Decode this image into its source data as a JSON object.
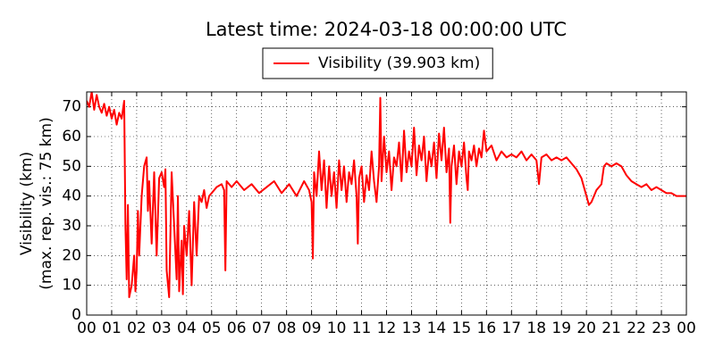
{
  "chart_data": {
    "type": "line",
    "title": "Latest time: 2024-03-18 00:00:00 UTC",
    "ylabel": [
      "Visibility (km)",
      "(max. rep. vis.: 75 km)"
    ],
    "xlim": [
      0,
      24
    ],
    "ylim": [
      0,
      75
    ],
    "yticks": [
      0,
      10,
      20,
      30,
      40,
      50,
      60,
      70
    ],
    "xticks": [
      {
        "value": 0,
        "label": "00"
      },
      {
        "value": 1,
        "label": "01"
      },
      {
        "value": 2,
        "label": "02"
      },
      {
        "value": 3,
        "label": "03"
      },
      {
        "value": 4,
        "label": "04"
      },
      {
        "value": 5,
        "label": "05"
      },
      {
        "value": 6,
        "label": "06"
      },
      {
        "value": 7,
        "label": "07"
      },
      {
        "value": 8,
        "label": "08"
      },
      {
        "value": 9,
        "label": "09"
      },
      {
        "value": 10,
        "label": "10"
      },
      {
        "value": 11,
        "label": "11"
      },
      {
        "value": 12,
        "label": "12"
      },
      {
        "value": 13,
        "label": "13"
      },
      {
        "value": 14,
        "label": "14"
      },
      {
        "value": 15,
        "label": "15"
      },
      {
        "value": 16,
        "label": "16"
      },
      {
        "value": 17,
        "label": "17"
      },
      {
        "value": 18,
        "label": "18"
      },
      {
        "value": 19,
        "label": "19"
      },
      {
        "value": 20,
        "label": "20"
      },
      {
        "value": 21,
        "label": "21"
      },
      {
        "value": 22,
        "label": "22"
      },
      {
        "value": 23,
        "label": "23"
      },
      {
        "value": 24,
        "label": "00"
      }
    ],
    "grid": true,
    "legend": "top",
    "x": [
      0,
      0.1,
      0.2,
      0.3,
      0.4,
      0.5,
      0.6,
      0.7,
      0.8,
      0.9,
      1.0,
      1.1,
      1.2,
      1.3,
      1.4,
      1.5,
      1.55,
      1.6,
      1.65,
      1.7,
      1.8,
      1.9,
      1.95,
      2.0,
      2.05,
      2.1,
      2.2,
      2.3,
      2.4,
      2.45,
      2.5,
      2.6,
      2.7,
      2.8,
      2.9,
      3.0,
      3.1,
      3.15,
      3.2,
      3.3,
      3.4,
      3.5,
      3.6,
      3.65,
      3.7,
      3.8,
      3.85,
      3.9,
      4.0,
      4.1,
      4.2,
      4.3,
      4.4,
      4.5,
      4.6,
      4.7,
      4.8,
      4.9,
      5.0,
      5.2,
      5.4,
      5.5,
      5.55,
      5.6,
      5.8,
      6.0,
      6.3,
      6.6,
      6.9,
      7.2,
      7.5,
      7.8,
      8.1,
      8.4,
      8.7,
      8.9,
      9.0,
      9.05,
      9.1,
      9.2,
      9.3,
      9.4,
      9.5,
      9.6,
      9.7,
      9.8,
      9.9,
      10.0,
      10.1,
      10.2,
      10.3,
      10.4,
      10.5,
      10.6,
      10.7,
      10.8,
      10.85,
      10.9,
      11.0,
      11.1,
      11.2,
      11.3,
      11.4,
      11.5,
      11.6,
      11.7,
      11.75,
      11.8,
      11.9,
      12.0,
      12.1,
      12.2,
      12.3,
      12.4,
      12.5,
      12.6,
      12.7,
      12.8,
      12.9,
      13.0,
      13.1,
      13.2,
      13.3,
      13.4,
      13.5,
      13.6,
      13.7,
      13.8,
      13.9,
      14.0,
      14.1,
      14.2,
      14.3,
      14.4,
      14.5,
      14.55,
      14.6,
      14.7,
      14.8,
      14.9,
      15.0,
      15.1,
      15.2,
      15.25,
      15.3,
      15.4,
      15.5,
      15.6,
      15.7,
      15.8,
      15.9,
      16.0,
      16.2,
      16.4,
      16.6,
      16.8,
      17.0,
      17.2,
      17.4,
      17.6,
      17.8,
      18.0,
      18.1,
      18.2,
      18.4,
      18.6,
      18.8,
      19.0,
      19.2,
      19.4,
      19.6,
      19.8,
      20.0,
      20.1,
      20.2,
      20.4,
      20.6,
      20.7,
      20.8,
      21.0,
      21.2,
      21.4,
      21.6,
      21.8,
      22.0,
      22.2,
      22.4,
      22.6,
      22.8,
      23.0,
      23.2,
      23.4,
      23.6,
      23.8,
      24.0
    ],
    "series": [
      {
        "name": "Visibility (39.903 km)",
        "color": "#ff0000",
        "values": [
          72,
          70,
          75,
          69,
          74,
          70,
          68,
          71,
          67,
          70,
          66,
          69,
          64,
          68,
          66,
          72,
          30,
          12,
          37,
          6,
          10,
          20,
          8,
          15,
          35,
          20,
          40,
          50,
          53,
          35,
          45,
          24,
          48,
          20,
          46,
          48,
          43,
          49,
          15,
          6,
          48,
          30,
          12,
          40,
          8,
          25,
          7,
          30,
          20,
          35,
          10,
          38,
          20,
          40,
          38,
          42,
          36,
          40,
          41,
          43,
          44,
          42,
          15,
          45,
          43,
          45,
          42,
          44,
          41,
          43,
          45,
          41,
          44,
          40,
          45,
          42,
          38,
          19,
          48,
          40,
          55,
          42,
          52,
          36,
          50,
          40,
          48,
          36,
          52,
          42,
          50,
          38,
          48,
          44,
          52,
          40,
          24,
          46,
          50,
          38,
          47,
          42,
          55,
          45,
          38,
          50,
          73,
          45,
          60,
          48,
          55,
          42,
          53,
          50,
          58,
          45,
          62,
          48,
          55,
          50,
          63,
          47,
          57,
          52,
          60,
          45,
          55,
          50,
          58,
          46,
          61,
          52,
          63,
          48,
          56,
          31,
          50,
          57,
          44,
          55,
          50,
          58,
          46,
          42,
          55,
          52,
          57,
          50,
          56,
          53,
          62,
          55,
          57,
          52,
          55,
          53,
          54,
          53,
          55,
          52,
          54,
          52,
          44,
          53,
          54,
          52,
          53,
          52,
          53,
          51,
          49,
          46,
          40,
          37,
          38,
          42,
          44,
          50,
          51,
          50,
          51,
          50,
          47,
          45,
          44,
          43,
          44,
          42,
          43,
          42,
          41,
          41,
          40,
          40,
          40
        ]
      }
    ]
  }
}
